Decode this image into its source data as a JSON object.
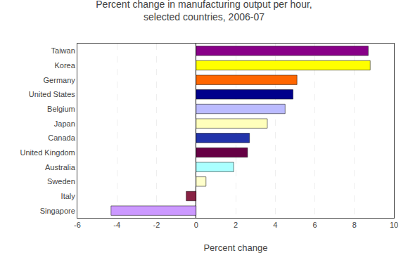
{
  "chart_data": {
    "type": "bar",
    "orientation": "horizontal",
    "title": "Percent change in manufacturing output per hour,\nselected countries, 2006-07",
    "xlabel": "Percent change",
    "categories": [
      "Taiwan",
      "Korea",
      "Germany",
      "United States",
      "Belgium",
      "Japan",
      "Canada",
      "United Kingdom",
      "Australia",
      "Sweden",
      "Italy",
      "Singapore"
    ],
    "values": [
      8.7,
      8.8,
      5.1,
      4.9,
      4.5,
      3.6,
      2.7,
      2.6,
      1.9,
      0.5,
      -0.5,
      -4.3
    ],
    "colors": [
      "#880088",
      "#FFFF00",
      "#FF6600",
      "#00008B",
      "#BBBBFF",
      "#FFFFBB",
      "#2233AA",
      "#660044",
      "#AAFFFF",
      "#FFFFCC",
      "#882244",
      "#CC99FF"
    ],
    "xlim": [
      -6,
      10
    ],
    "xticks": [
      -6,
      -4,
      -2,
      0,
      2,
      4,
      6,
      8,
      10
    ],
    "grid": true
  }
}
